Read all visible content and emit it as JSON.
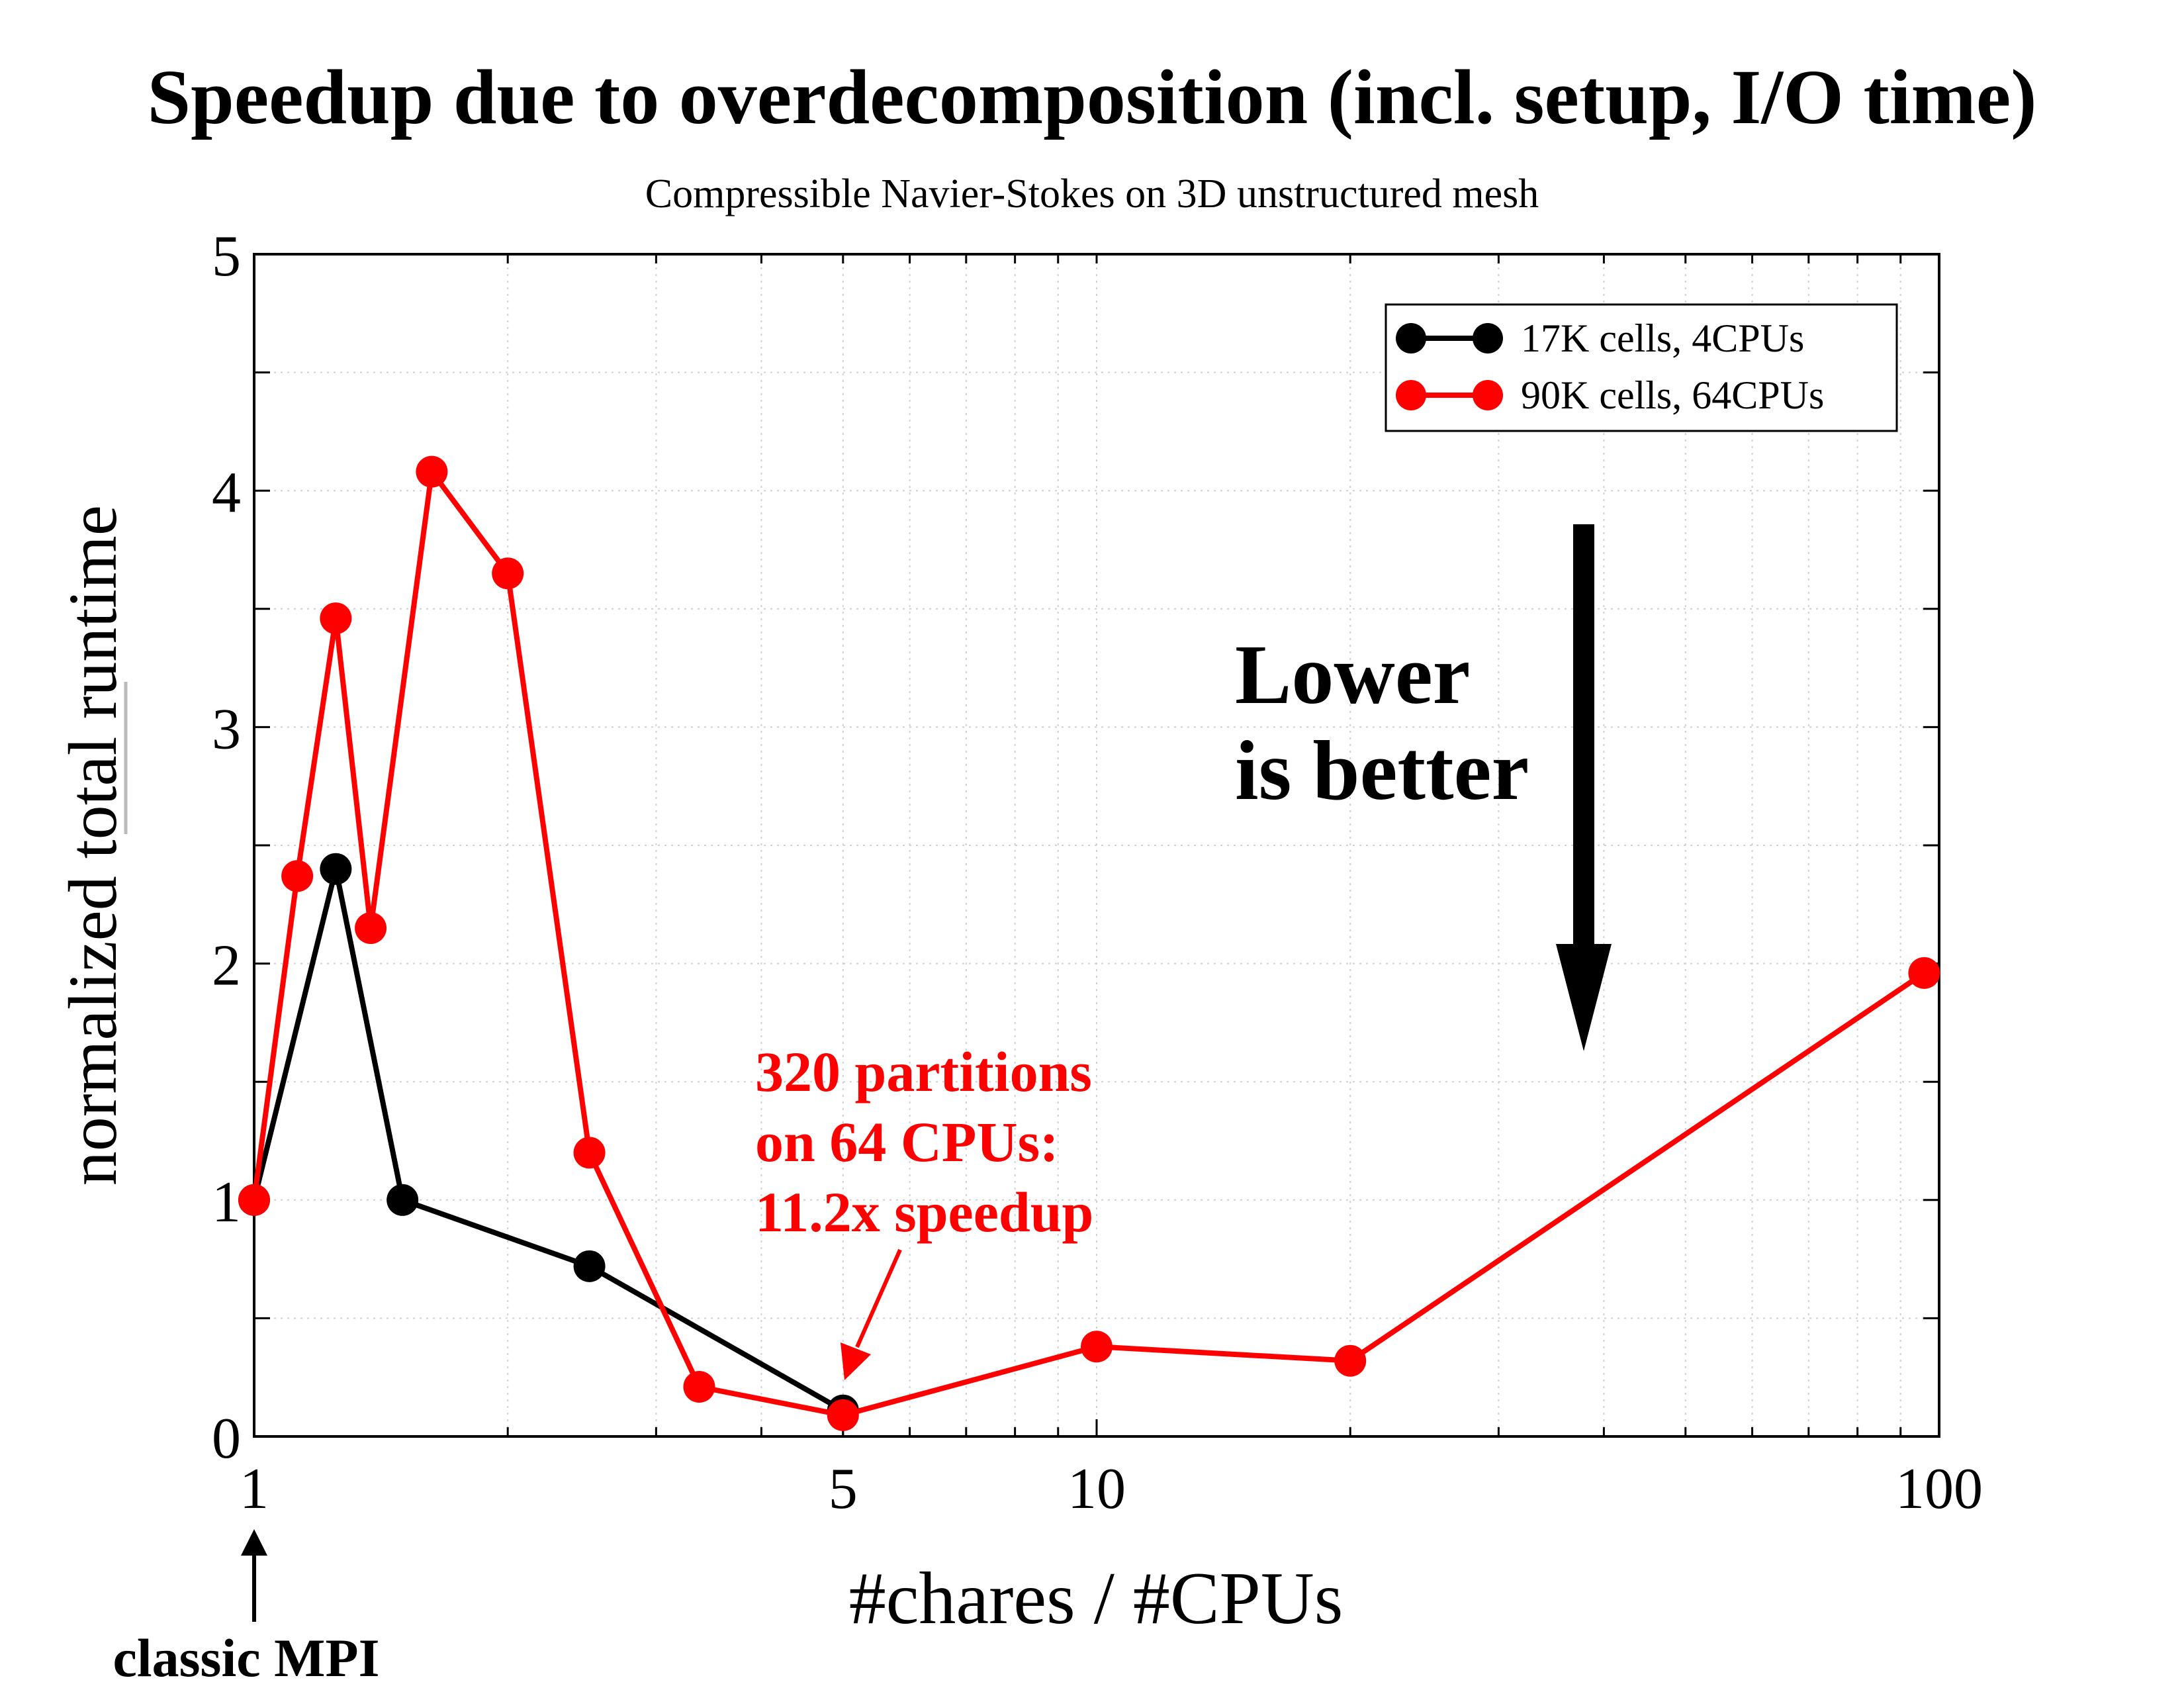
{
  "chart_data": {
    "type": "line",
    "title": "Speedup due to overdecomposition (incl. setup, I/O time)",
    "subtitle": "Compressible Navier-Stokes on 3D unstructured mesh",
    "xlabel": "#chares / #CPUs",
    "ylabel": "normalized total runtime",
    "x_scale": "log",
    "xlim": [
      1,
      100
    ],
    "ylim": [
      0,
      5
    ],
    "x_ticks": [
      1,
      5,
      10,
      100
    ],
    "y_ticks": [
      0,
      1,
      2,
      3,
      4,
      5
    ],
    "grid": true,
    "legend_position": "top-right",
    "series": [
      {
        "name": "17K cells, 4CPUs",
        "color": "#000000",
        "points": [
          [
            1,
            1.0
          ],
          [
            1.25,
            2.4
          ],
          [
            1.5,
            1.0
          ],
          [
            2.5,
            0.72
          ],
          [
            5,
            0.11
          ]
        ]
      },
      {
        "name": "90K cells, 64CPUs",
        "color": "#ff0000",
        "points": [
          [
            1,
            1.0
          ],
          [
            1.125,
            2.37
          ],
          [
            1.25,
            3.46
          ],
          [
            1.375,
            2.15
          ],
          [
            1.625,
            4.08
          ],
          [
            2.0,
            3.65
          ],
          [
            2.5,
            1.2
          ],
          [
            3.375,
            0.21
          ],
          [
            5,
            0.09
          ],
          [
            10,
            0.38
          ],
          [
            20,
            0.32
          ],
          [
            96,
            1.96
          ]
        ]
      }
    ],
    "annotations": {
      "lower_better_line1": "Lower",
      "lower_better_line2": "is better",
      "partitions_line1": "320 partitions",
      "partitions_line2": "on 64 CPUs:",
      "partitions_line3": "11.2x speedup",
      "classic_mpi": "classic MPI"
    }
  }
}
